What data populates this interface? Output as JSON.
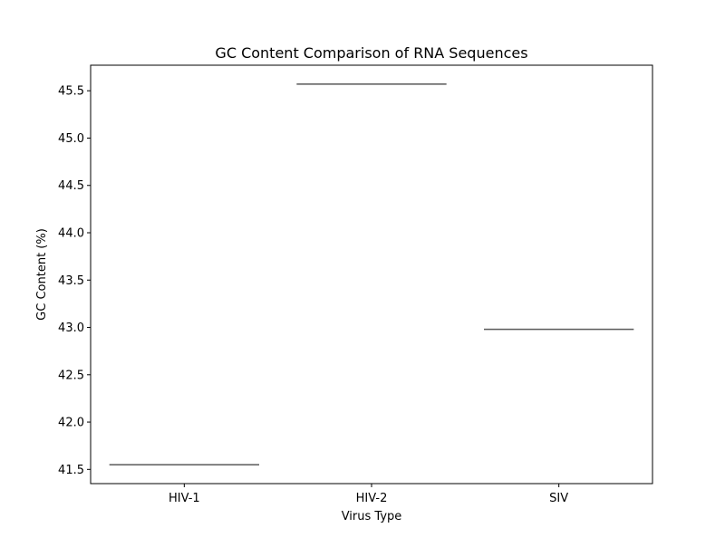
{
  "chart_data": {
    "type": "box",
    "title": "GC Content Comparison of RNA Sequences",
    "xlabel": "Virus Type",
    "ylabel": "GC Content (%)",
    "categories": [
      "HIV-1",
      "HIV-2",
      "SIV"
    ],
    "values": [
      41.55,
      45.57,
      42.98
    ],
    "ylim": [
      41.35,
      45.77
    ],
    "yticks": [
      41.5,
      42.0,
      42.5,
      43.0,
      43.5,
      44.0,
      44.5,
      45.0,
      45.5
    ],
    "ytick_labels": [
      "41.5",
      "42.0",
      "42.5",
      "43.0",
      "43.5",
      "44.0",
      "44.5",
      "45.0",
      "45.5"
    ],
    "grid": false,
    "legend": "none",
    "line_color": "#595959"
  }
}
